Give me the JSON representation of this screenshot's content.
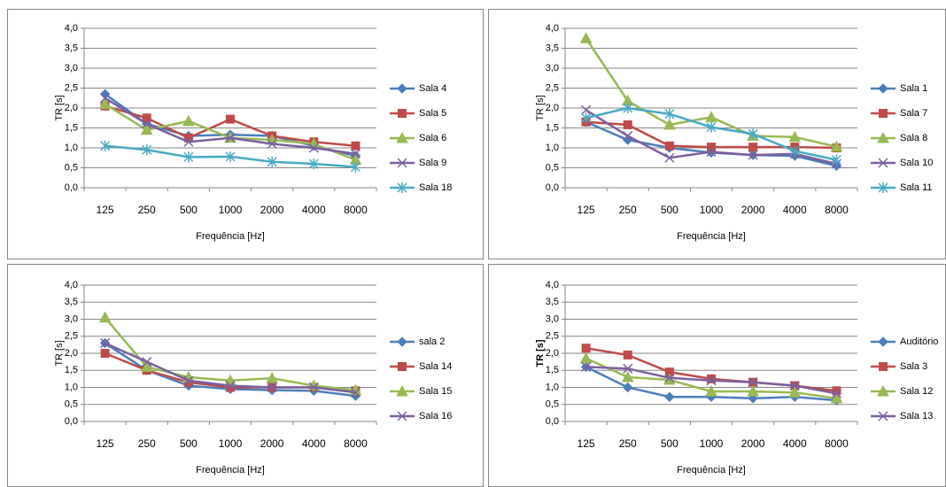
{
  "chart_data": [
    {
      "type": "line",
      "x_label": "Frequência [Hz]",
      "y_label": "TR [s]",
      "grid": true,
      "categories": [
        "125",
        "250",
        "500",
        "1000",
        "2000",
        "4000",
        "8000"
      ],
      "ylim": [
        0,
        4
      ],
      "yticks": [
        {
          "value": 0,
          "label": "0,0"
        },
        {
          "value": 0.5,
          "label": "0,5"
        },
        {
          "value": 1,
          "label": "1,0"
        },
        {
          "value": 1.5,
          "label": "1,5"
        },
        {
          "value": 2,
          "label": "2,0"
        },
        {
          "value": 2.5,
          "label": "2,5"
        },
        {
          "value": 3,
          "label": "3,0"
        },
        {
          "value": 3.5,
          "label": "3,5"
        },
        {
          "value": 4,
          "label": "4,0"
        }
      ],
      "series": [
        {
          "name": "Sala 4",
          "color": "#4a7ebb",
          "marker": "diamond",
          "values": [
            2.35,
            1.6,
            1.3,
            1.33,
            1.3,
            1.05,
            0.8
          ]
        },
        {
          "name": "Sala 5",
          "color": "#be4b48",
          "marker": "square",
          "values": [
            2.05,
            1.75,
            1.25,
            1.72,
            1.3,
            1.15,
            1.05
          ]
        },
        {
          "name": "Sala 6",
          "color": "#98b954",
          "marker": "triangle",
          "values": [
            2.1,
            1.45,
            1.67,
            1.25,
            1.2,
            1.1,
            0.7
          ]
        },
        {
          "name": "Sala 9",
          "color": "#7d60a0",
          "marker": "x",
          "values": [
            2.25,
            1.6,
            1.15,
            1.25,
            1.1,
            1.0,
            0.85
          ]
        },
        {
          "name": "Sala 18",
          "color": "#46aac5",
          "marker": "star",
          "values": [
            1.05,
            0.95,
            0.77,
            0.78,
            0.65,
            0.6,
            0.52
          ]
        }
      ]
    },
    {
      "type": "line",
      "x_label": "Frequência [Hz]",
      "y_label": "TR [s]",
      "grid": true,
      "categories": [
        "125",
        "250",
        "500",
        "1000",
        "2000",
        "4000",
        "8000"
      ],
      "ylim": [
        0,
        4
      ],
      "yticks": [
        {
          "value": 0,
          "label": "0,0"
        },
        {
          "value": 0.5,
          "label": "0,5"
        },
        {
          "value": 1,
          "label": "1,0"
        },
        {
          "value": 1.5,
          "label": "1,5"
        },
        {
          "value": 2,
          "label": "2,0"
        },
        {
          "value": 2.5,
          "label": "2,5"
        },
        {
          "value": 3,
          "label": "3,0"
        },
        {
          "value": 3.5,
          "label": "3,5"
        },
        {
          "value": 4,
          "label": "4,0"
        }
      ],
      "series": [
        {
          "name": "Sala 1",
          "color": "#4a7ebb",
          "marker": "diamond",
          "values": [
            1.65,
            1.2,
            1.0,
            0.88,
            0.82,
            0.8,
            0.55
          ]
        },
        {
          "name": "Sala 7",
          "color": "#be4b48",
          "marker": "square",
          "values": [
            1.65,
            1.58,
            1.05,
            1.02,
            1.02,
            1.02,
            1.0
          ]
        },
        {
          "name": "Sala 8",
          "color": "#98b954",
          "marker": "triangle",
          "values": [
            3.75,
            2.18,
            1.58,
            1.77,
            1.3,
            1.27,
            1.03
          ]
        },
        {
          "name": "Sala 10",
          "color": "#7d60a0",
          "marker": "x",
          "values": [
            1.95,
            1.3,
            0.75,
            0.9,
            0.82,
            0.85,
            0.6
          ]
        },
        {
          "name": "Sala 11",
          "color": "#46aac5",
          "marker": "star",
          "values": [
            1.75,
            2.0,
            1.85,
            1.52,
            1.35,
            0.92,
            0.7
          ]
        }
      ]
    },
    {
      "type": "line",
      "x_label": "Frequência [Hz]",
      "y_label": "TR [s]",
      "grid": true,
      "categories": [
        "125",
        "250",
        "500",
        "1000",
        "2000",
        "4000",
        "8000"
      ],
      "ylim": [
        0,
        4
      ],
      "yticks": [
        {
          "value": 0,
          "label": "0,0"
        },
        {
          "value": 0.5,
          "label": "0,5"
        },
        {
          "value": 1,
          "label": "1,0"
        },
        {
          "value": 1.5,
          "label": "1,5"
        },
        {
          "value": 2,
          "label": "2,0"
        },
        {
          "value": 2.5,
          "label": "2,5"
        },
        {
          "value": 3,
          "label": "3,0"
        },
        {
          "value": 3.5,
          "label": "3,5"
        },
        {
          "value": 4,
          "label": "4,0"
        }
      ],
      "series": [
        {
          "name": "sala 2",
          "color": "#4a7ebb",
          "marker": "diamond",
          "values": [
            2.3,
            1.5,
            1.05,
            0.95,
            0.92,
            0.9,
            0.75
          ]
        },
        {
          "name": "Sala 14",
          "color": "#be4b48",
          "marker": "square",
          "values": [
            2.0,
            1.5,
            1.15,
            1.0,
            1.0,
            1.0,
            0.9
          ]
        },
        {
          "name": "Sala 15",
          "color": "#98b954",
          "marker": "triangle",
          "values": [
            3.05,
            1.6,
            1.3,
            1.2,
            1.27,
            1.05,
            0.92
          ]
        },
        {
          "name": "Sala 16",
          "color": "#7d60a0",
          "marker": "x",
          "values": [
            2.3,
            1.75,
            1.2,
            1.05,
            1.0,
            1.0,
            0.85
          ]
        }
      ]
    },
    {
      "type": "line",
      "x_label": "Frequência [Hz]",
      "y_label": "TR [s]",
      "y_label_bold": true,
      "grid": true,
      "categories": [
        "125",
        "250",
        "500",
        "1000",
        "2000",
        "4000",
        "8000"
      ],
      "ylim": [
        0,
        4
      ],
      "yticks": [
        {
          "value": 0,
          "label": "0,0"
        },
        {
          "value": 0.5,
          "label": "0,5"
        },
        {
          "value": 1,
          "label": "1,0"
        },
        {
          "value": 1.5,
          "label": "1,5"
        },
        {
          "value": 2,
          "label": "2,0"
        },
        {
          "value": 2.5,
          "label": "2,5"
        },
        {
          "value": 3,
          "label": "3,0"
        },
        {
          "value": 3.5,
          "label": "3,5"
        },
        {
          "value": 4,
          "label": "4,0"
        }
      ],
      "series": [
        {
          "name": "Auditório",
          "color": "#4a7ebb",
          "marker": "diamond",
          "values": [
            1.6,
            1.0,
            0.72,
            0.72,
            0.68,
            0.72,
            0.62
          ]
        },
        {
          "name": "Sala 3",
          "color": "#be4b48",
          "marker": "square",
          "values": [
            2.15,
            1.95,
            1.45,
            1.25,
            1.15,
            1.05,
            0.9
          ]
        },
        {
          "name": "Sala 12",
          "color": "#98b954",
          "marker": "triangle",
          "values": [
            1.85,
            1.3,
            1.22,
            0.88,
            0.88,
            0.85,
            0.68
          ]
        },
        {
          "name": "Sala 13",
          "color": "#7d60a0",
          "marker": "x",
          "values": [
            1.6,
            1.55,
            1.28,
            1.2,
            1.15,
            1.05,
            0.82
          ]
        }
      ]
    }
  ]
}
